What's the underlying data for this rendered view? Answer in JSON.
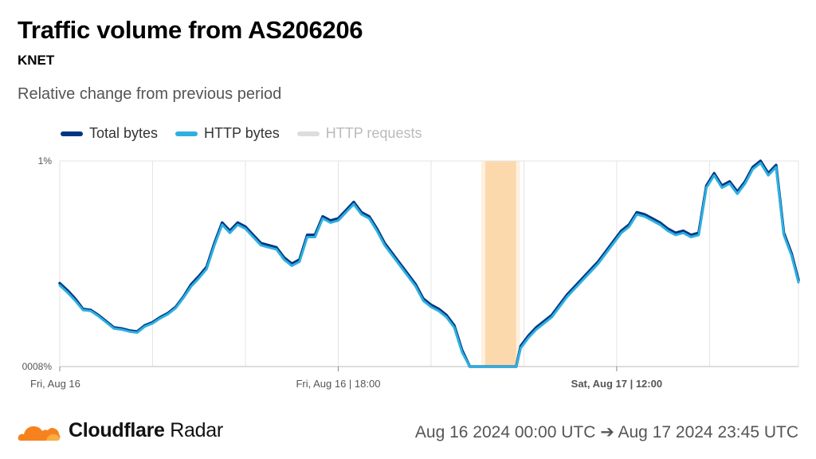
{
  "header": {
    "title": "Traffic volume from AS206206",
    "subtitle": "KNET",
    "description": "Relative change from previous period"
  },
  "legend": [
    {
      "label": "Total bytes",
      "color": "#003682",
      "muted": false
    },
    {
      "label": "HTTP bytes",
      "color": "#2db0e0",
      "muted": false
    },
    {
      "label": "HTTP requests",
      "color": "#dddddd",
      "muted": true
    }
  ],
  "footer": {
    "brand_bold": "Cloudflare",
    "brand_regular": "Radar",
    "date_range": "Aug 16 2024 00:00 UTC ➔ Aug 17 2024 23:45 UTC",
    "logo_color": "#f6821f"
  },
  "chart_data": {
    "type": "line",
    "title": "Traffic volume from AS206206",
    "subtitle": "KNET",
    "xlabel": "",
    "ylabel": "",
    "y_tick_labels": [
      "1%",
      "0008%"
    ],
    "x_tick_labels": [
      {
        "label": "Fri, Aug 16",
        "hour": 0,
        "bold": false
      },
      {
        "label": "Fri, Aug 16 | 18:00",
        "hour": 18,
        "bold": false
      },
      {
        "label": "Sat, Aug 17 | 12:00",
        "hour": 36,
        "bold": true
      }
    ],
    "x_range_hours": [
      0,
      47.75
    ],
    "ylim": [
      0,
      1
    ],
    "gridlines_hours": [
      0,
      6,
      12,
      18,
      24,
      30,
      36,
      42,
      47.75
    ],
    "outage_band_hours": [
      27.5,
      29.5
    ],
    "outage_color": "#fcd9ad",
    "series": [
      {
        "name": "Total bytes",
        "color": "#003682",
        "points": [
          [
            0,
            0.405
          ],
          [
            0.5,
            0.37
          ],
          [
            1,
            0.33
          ],
          [
            1.5,
            0.28
          ],
          [
            2,
            0.275
          ],
          [
            2.5,
            0.25
          ],
          [
            3,
            0.22
          ],
          [
            3.5,
            0.19
          ],
          [
            4,
            0.185
          ],
          [
            4.5,
            0.175
          ],
          [
            5,
            0.17
          ],
          [
            5.5,
            0.2
          ],
          [
            6,
            0.215
          ],
          [
            6.5,
            0.24
          ],
          [
            7,
            0.26
          ],
          [
            7.5,
            0.29
          ],
          [
            8,
            0.34
          ],
          [
            8.5,
            0.4
          ],
          [
            9,
            0.44
          ],
          [
            9.5,
            0.485
          ],
          [
            10,
            0.6
          ],
          [
            10.5,
            0.7
          ],
          [
            11,
            0.66
          ],
          [
            11.5,
            0.7
          ],
          [
            12,
            0.68
          ],
          [
            12.5,
            0.64
          ],
          [
            13,
            0.6
          ],
          [
            13.5,
            0.59
          ],
          [
            14,
            0.58
          ],
          [
            14.5,
            0.53
          ],
          [
            15,
            0.5
          ],
          [
            15.5,
            0.52
          ],
          [
            16,
            0.64
          ],
          [
            16.5,
            0.64
          ],
          [
            17,
            0.73
          ],
          [
            17.5,
            0.71
          ],
          [
            18,
            0.72
          ],
          [
            18.5,
            0.76
          ],
          [
            19,
            0.8
          ],
          [
            19.5,
            0.75
          ],
          [
            20,
            0.73
          ],
          [
            20.5,
            0.67
          ],
          [
            21,
            0.6
          ],
          [
            21.5,
            0.55
          ],
          [
            22,
            0.5
          ],
          [
            22.5,
            0.45
          ],
          [
            23,
            0.4
          ],
          [
            23.5,
            0.33
          ],
          [
            24,
            0.3
          ],
          [
            24.5,
            0.28
          ],
          [
            25,
            0.25
          ],
          [
            25.5,
            0.2
          ],
          [
            26,
            0.08
          ],
          [
            26.5,
            0.0
          ],
          [
            27,
            0.0
          ],
          [
            28,
            0.0
          ],
          [
            28.5,
            0.0
          ],
          [
            29,
            0.0
          ],
          [
            29.5,
            0.0
          ],
          [
            29.8,
            0.1
          ],
          [
            30.3,
            0.15
          ],
          [
            30.8,
            0.19
          ],
          [
            31.3,
            0.22
          ],
          [
            31.8,
            0.25
          ],
          [
            32.3,
            0.3
          ],
          [
            32.8,
            0.35
          ],
          [
            33.3,
            0.39
          ],
          [
            33.8,
            0.43
          ],
          [
            34.3,
            0.47
          ],
          [
            34.8,
            0.51
          ],
          [
            35.3,
            0.56
          ],
          [
            35.8,
            0.61
          ],
          [
            36.3,
            0.66
          ],
          [
            36.8,
            0.69
          ],
          [
            37.3,
            0.75
          ],
          [
            37.8,
            0.74
          ],
          [
            38.3,
            0.72
          ],
          [
            38.8,
            0.7
          ],
          [
            39.3,
            0.67
          ],
          [
            39.8,
            0.65
          ],
          [
            40.3,
            0.66
          ],
          [
            40.8,
            0.64
          ],
          [
            41.3,
            0.65
          ],
          [
            41.8,
            0.88
          ],
          [
            42.3,
            0.94
          ],
          [
            42.8,
            0.88
          ],
          [
            43.3,
            0.9
          ],
          [
            43.8,
            0.85
          ],
          [
            44.3,
            0.9
          ],
          [
            44.8,
            0.97
          ],
          [
            45.3,
            1.0
          ],
          [
            45.8,
            0.94
          ],
          [
            46.3,
            0.98
          ],
          [
            46.8,
            0.65
          ],
          [
            47.3,
            0.55
          ],
          [
            47.75,
            0.42
          ]
        ]
      },
      {
        "name": "HTTP bytes",
        "color": "#2db0e0",
        "points": [
          [
            0,
            0.395
          ],
          [
            0.5,
            0.36
          ],
          [
            1,
            0.32
          ],
          [
            1.5,
            0.275
          ],
          [
            2,
            0.27
          ],
          [
            2.5,
            0.245
          ],
          [
            3,
            0.215
          ],
          [
            3.5,
            0.185
          ],
          [
            4,
            0.18
          ],
          [
            4.5,
            0.17
          ],
          [
            5,
            0.165
          ],
          [
            5.5,
            0.195
          ],
          [
            6,
            0.21
          ],
          [
            6.5,
            0.235
          ],
          [
            7,
            0.255
          ],
          [
            7.5,
            0.285
          ],
          [
            8,
            0.335
          ],
          [
            8.5,
            0.39
          ],
          [
            9,
            0.43
          ],
          [
            9.5,
            0.475
          ],
          [
            10,
            0.59
          ],
          [
            10.5,
            0.69
          ],
          [
            11,
            0.65
          ],
          [
            11.5,
            0.69
          ],
          [
            12,
            0.67
          ],
          [
            12.5,
            0.63
          ],
          [
            13,
            0.59
          ],
          [
            13.5,
            0.58
          ],
          [
            14,
            0.57
          ],
          [
            14.5,
            0.52
          ],
          [
            15,
            0.49
          ],
          [
            15.5,
            0.51
          ],
          [
            16,
            0.63
          ],
          [
            16.5,
            0.63
          ],
          [
            17,
            0.72
          ],
          [
            17.5,
            0.7
          ],
          [
            18,
            0.71
          ],
          [
            18.5,
            0.75
          ],
          [
            19,
            0.79
          ],
          [
            19.5,
            0.74
          ],
          [
            20,
            0.72
          ],
          [
            20.5,
            0.66
          ],
          [
            21,
            0.59
          ],
          [
            21.5,
            0.54
          ],
          [
            22,
            0.49
          ],
          [
            22.5,
            0.44
          ],
          [
            23,
            0.39
          ],
          [
            23.5,
            0.32
          ],
          [
            24,
            0.29
          ],
          [
            24.5,
            0.27
          ],
          [
            25,
            0.24
          ],
          [
            25.5,
            0.19
          ],
          [
            26,
            0.07
          ],
          [
            26.5,
            0.0
          ],
          [
            27,
            0.0
          ],
          [
            28,
            0.0
          ],
          [
            28.5,
            0.0
          ],
          [
            29,
            0.0
          ],
          [
            29.5,
            0.0
          ],
          [
            29.8,
            0.09
          ],
          [
            30.3,
            0.14
          ],
          [
            30.8,
            0.18
          ],
          [
            31.3,
            0.21
          ],
          [
            31.8,
            0.24
          ],
          [
            32.3,
            0.29
          ],
          [
            32.8,
            0.34
          ],
          [
            33.3,
            0.38
          ],
          [
            33.8,
            0.42
          ],
          [
            34.3,
            0.46
          ],
          [
            34.8,
            0.5
          ],
          [
            35.3,
            0.55
          ],
          [
            35.8,
            0.6
          ],
          [
            36.3,
            0.65
          ],
          [
            36.8,
            0.68
          ],
          [
            37.3,
            0.74
          ],
          [
            37.8,
            0.73
          ],
          [
            38.3,
            0.71
          ],
          [
            38.8,
            0.69
          ],
          [
            39.3,
            0.66
          ],
          [
            39.8,
            0.64
          ],
          [
            40.3,
            0.65
          ],
          [
            40.8,
            0.63
          ],
          [
            41.3,
            0.64
          ],
          [
            41.8,
            0.87
          ],
          [
            42.3,
            0.93
          ],
          [
            42.8,
            0.87
          ],
          [
            43.3,
            0.89
          ],
          [
            43.8,
            0.84
          ],
          [
            44.3,
            0.89
          ],
          [
            44.8,
            0.96
          ],
          [
            45.3,
            0.99
          ],
          [
            45.8,
            0.93
          ],
          [
            46.3,
            0.97
          ],
          [
            46.8,
            0.64
          ],
          [
            47.3,
            0.54
          ],
          [
            47.75,
            0.41
          ]
        ]
      }
    ]
  }
}
